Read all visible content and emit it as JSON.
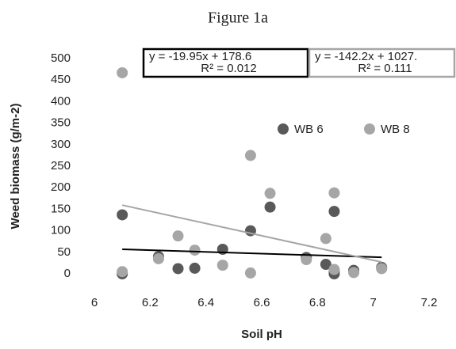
{
  "chart_data": {
    "type": "scatter",
    "title": "Figure 1a",
    "x_label": "Soil pH",
    "y_label": "Weed biomass (g/m-2)",
    "xlim": [
      6,
      7.2
    ],
    "xticks": [
      6,
      6.2,
      6.4,
      6.6,
      6.8,
      7,
      7.2
    ],
    "ylim": [
      0,
      500
    ],
    "yticks": [
      0,
      50,
      100,
      150,
      200,
      250,
      300,
      350,
      400,
      450,
      500
    ],
    "grid": false,
    "legend": "upper-right",
    "series": [
      {
        "name": "WB 6",
        "color": "#595959",
        "x": [
          6.1,
          6.1,
          6.23,
          6.3,
          6.36,
          6.46,
          6.56,
          6.63,
          6.76,
          6.83,
          6.86,
          6.86,
          6.86,
          6.93,
          7.03
        ],
        "values": [
          137,
          0,
          40,
          12,
          13,
          57,
          100,
          155,
          38,
          22,
          145,
          5,
          0,
          8,
          15
        ],
        "trendline": {
          "slope": -19.95,
          "intercept": 178.6,
          "color": "#000000",
          "equation": "y = -19.95x + 178.6",
          "r2": "R² = 0.012"
        }
      },
      {
        "name": "WB 8",
        "color": "#a6a6a6",
        "x": [
          6.1,
          6.1,
          6.23,
          6.3,
          6.36,
          6.46,
          6.56,
          6.56,
          6.63,
          6.76,
          6.83,
          6.86,
          6.86,
          6.93,
          7.03
        ],
        "values": [
          467,
          5,
          35,
          88,
          55,
          20,
          275,
          2,
          187,
          33,
          82,
          188,
          10,
          3,
          12
        ],
        "trendline": {
          "slope": -142.2,
          "intercept": 1027,
          "color": "#a6a6a6",
          "equation": "y = -142.2x + 1027.",
          "r2": "R² = 0.111"
        }
      }
    ]
  }
}
